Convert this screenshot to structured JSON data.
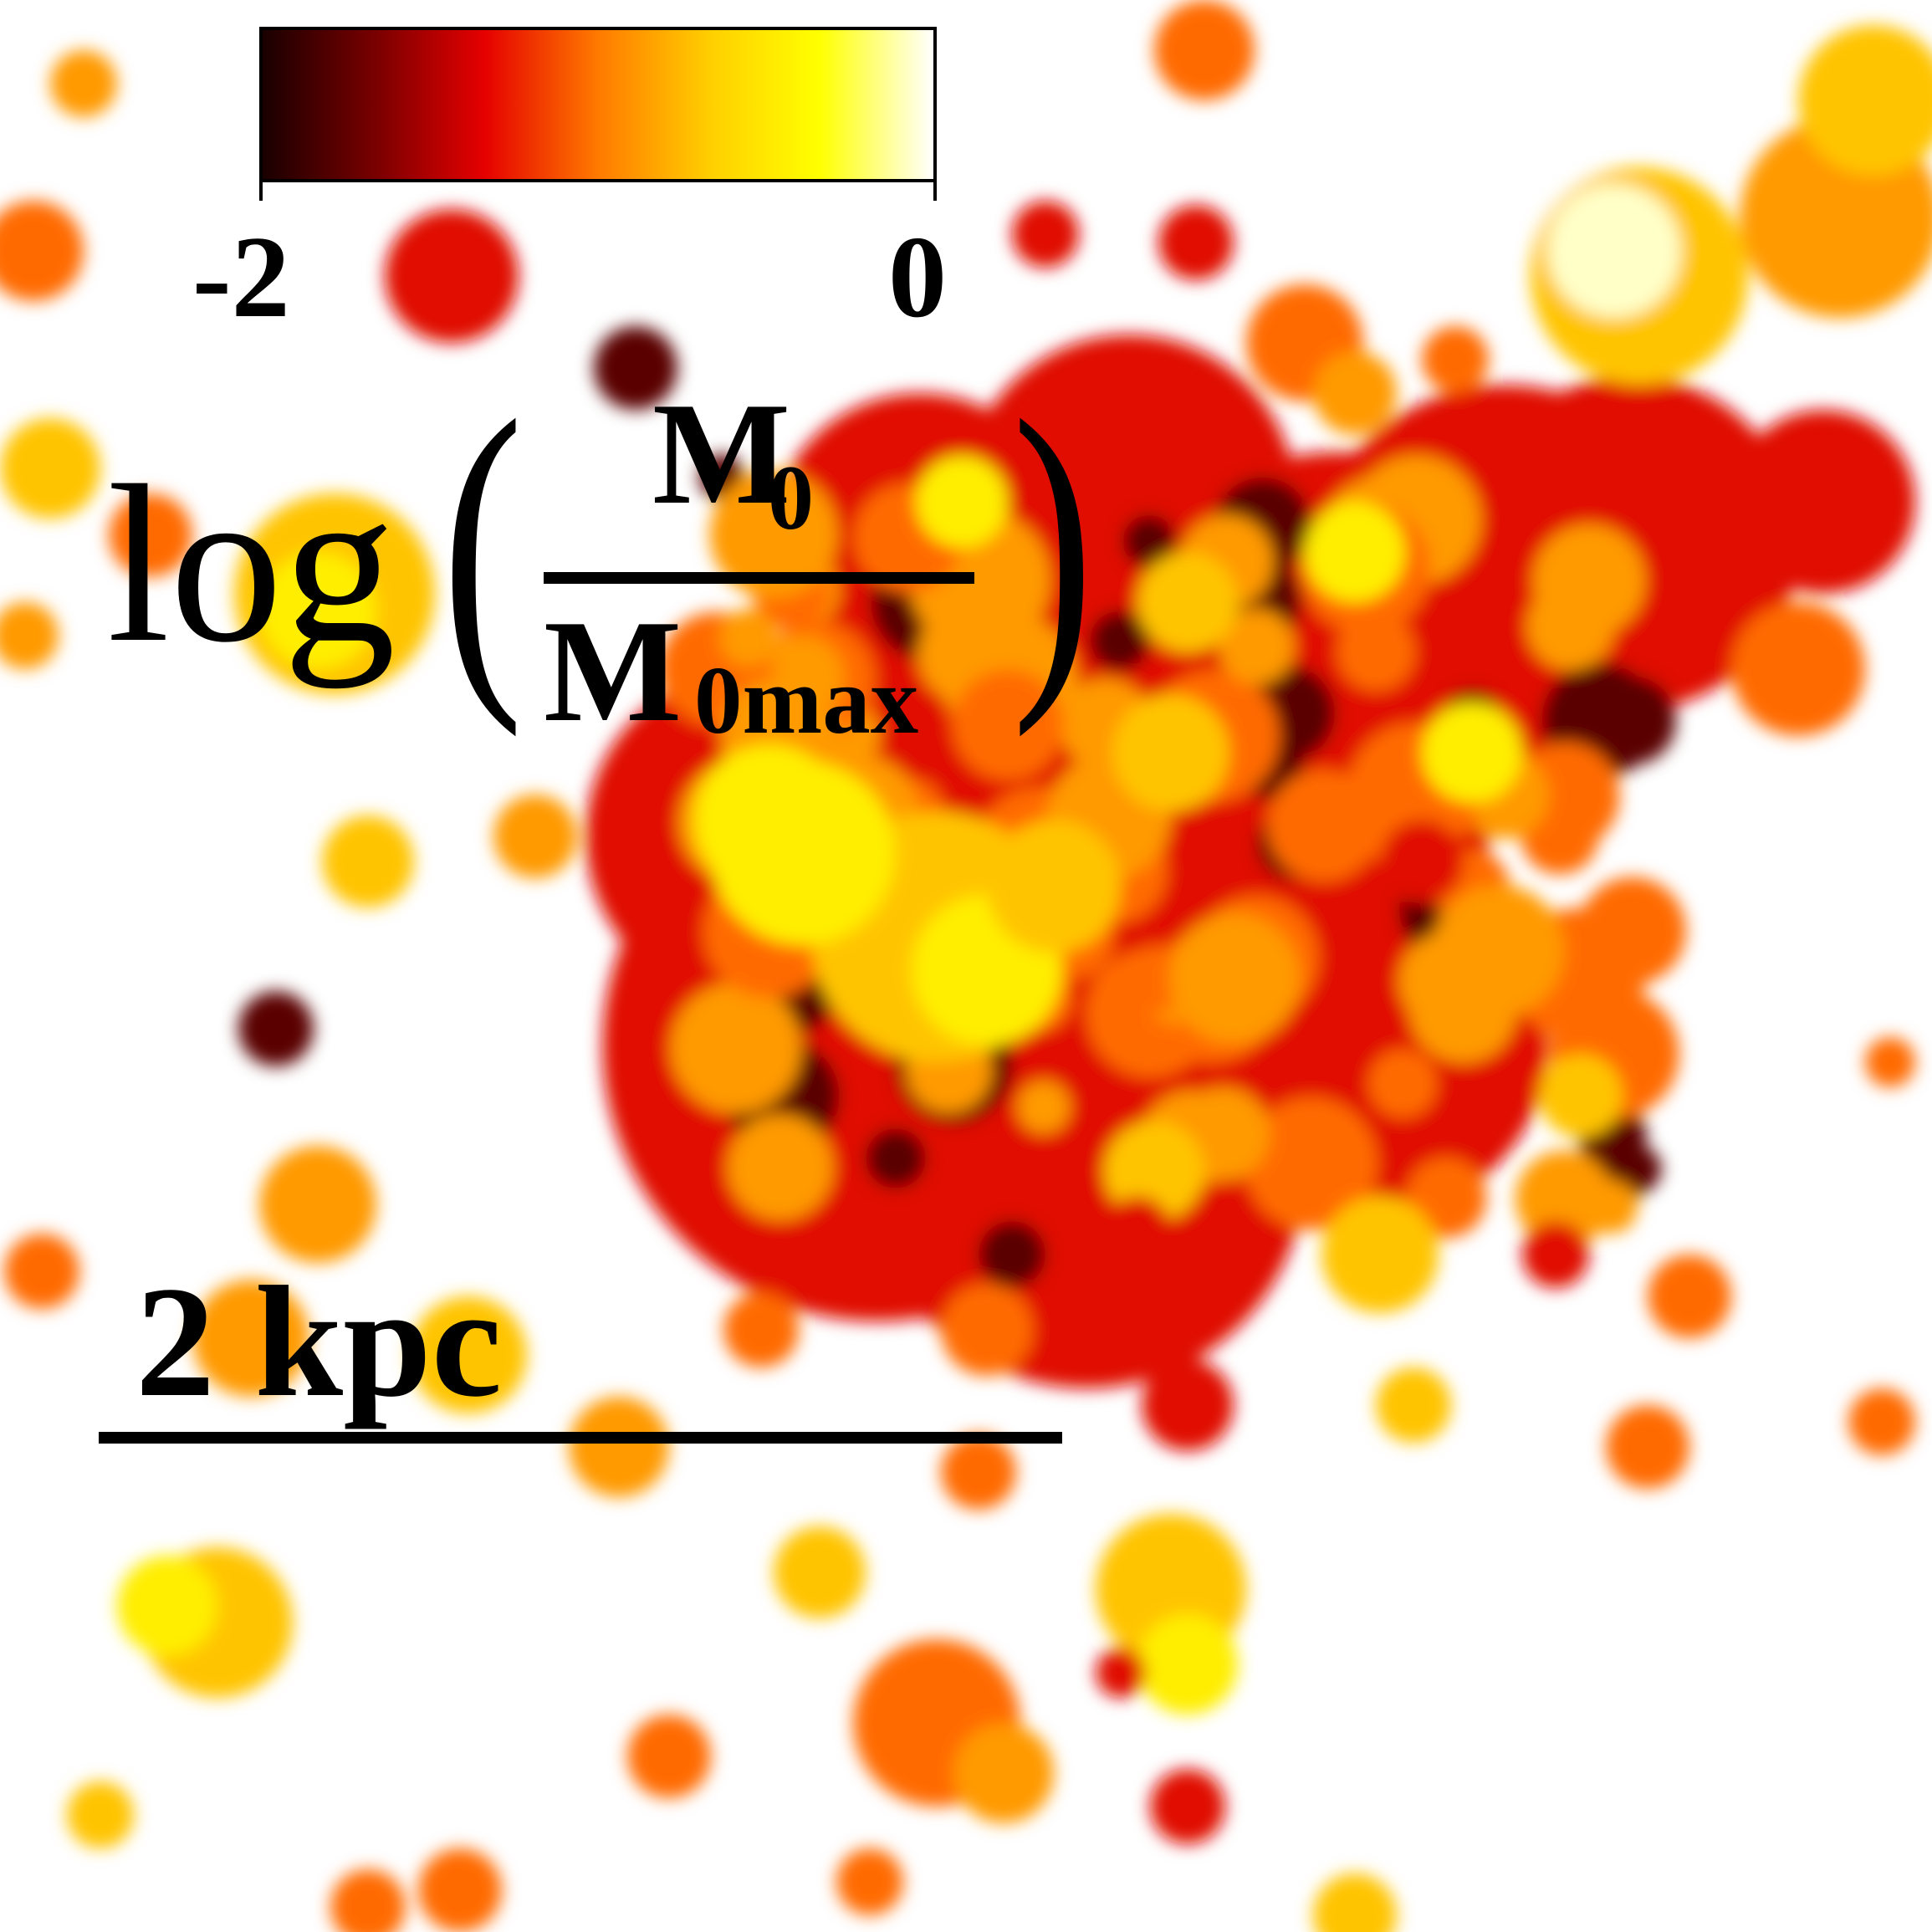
{
  "colorbar": {
    "min_label": "-2",
    "max_label": "0",
    "colors": [
      "#1a0000",
      "#7a0000",
      "#e50000",
      "#ff7a00",
      "#ffd000",
      "#ffff00",
      "#ffffff"
    ]
  },
  "quantity_label": {
    "log": "log",
    "paren_open": "(",
    "paren_close": ")",
    "numerator": "M",
    "numerator_sub": "0",
    "denominator": "M",
    "denominator_sub": "0max"
  },
  "scale_bar": {
    "label": "2 kpc"
  },
  "palette": {
    "dark": "#5a0000",
    "red": "#e01000",
    "orange": "#ff6a00",
    "amber": "#ff9a00",
    "gold": "#ffc400",
    "yellow": "#ffee00",
    "pale": "#ffffc8"
  }
}
